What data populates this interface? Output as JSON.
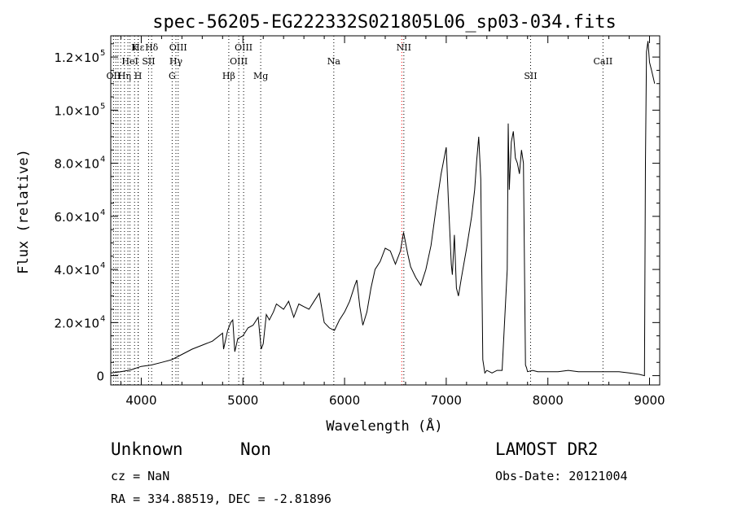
{
  "chart_data": {
    "type": "line",
    "title": "spec-56205-EG222332S021805L06_sp03-034.fits",
    "xlabel": "Wavelength (Å)",
    "ylabel": "Flux (relative)",
    "xlim": [
      3700,
      9100
    ],
    "ylim": [
      -3500,
      128000
    ],
    "x_ticks": [
      4000,
      5000,
      6000,
      7000,
      8000,
      9000
    ],
    "y_ticks": [
      {
        "value": 0,
        "mantissa": "0",
        "exponent": ""
      },
      {
        "value": 20000,
        "mantissa": "2.0×10",
        "exponent": "4"
      },
      {
        "value": 40000,
        "mantissa": "4.0×10",
        "exponent": "4"
      },
      {
        "value": 60000,
        "mantissa": "6.0×10",
        "exponent": "4"
      },
      {
        "value": 80000,
        "mantissa": "8.0×10",
        "exponent": "4"
      },
      {
        "value": 100000,
        "mantissa": "1.0×10",
        "exponent": "5"
      },
      {
        "value": 120000,
        "mantissa": "1.2×10",
        "exponent": "5"
      }
    ],
    "spectral_lines": [
      {
        "wave": 3727,
        "label": "OII",
        "row": 2,
        "color": "#000000"
      },
      {
        "wave": 3750,
        "label": "",
        "row": 0,
        "color": "#000000"
      },
      {
        "wave": 3771,
        "label": "",
        "row": 0,
        "color": "#000000"
      },
      {
        "wave": 3798,
        "label": "",
        "row": 0,
        "color": "#000000"
      },
      {
        "wave": 3835,
        "label": "Hη",
        "row": 2,
        "color": "#000000"
      },
      {
        "wave": 3869,
        "label": "",
        "row": 0,
        "color": "#000000"
      },
      {
        "wave": 3889,
        "label": "HeI",
        "row": 1,
        "color": "#000000"
      },
      {
        "wave": 3934,
        "label": "K",
        "row": 0,
        "color": "#000000"
      },
      {
        "wave": 3969,
        "label": "H",
        "row": 2,
        "color": "#000000"
      },
      {
        "wave": 3970,
        "label": "Hε",
        "row": 0,
        "color": "#000000"
      },
      {
        "wave": 4072,
        "label": "SII",
        "row": 1,
        "color": "#000000"
      },
      {
        "wave": 4102,
        "label": "Hδ",
        "row": 0,
        "color": "#000000"
      },
      {
        "wave": 4304,
        "label": "G",
        "row": 2,
        "color": "#000000"
      },
      {
        "wave": 4341,
        "label": "Hγ",
        "row": 1,
        "color": "#000000"
      },
      {
        "wave": 4363,
        "label": "OIII",
        "row": 0,
        "color": "#000000"
      },
      {
        "wave": 4861,
        "label": "Hβ",
        "row": 2,
        "color": "#000000"
      },
      {
        "wave": 4959,
        "label": "OIII",
        "row": 1,
        "color": "#000000"
      },
      {
        "wave": 5007,
        "label": "OIII",
        "row": 0,
        "color": "#000000"
      },
      {
        "wave": 5175,
        "label": "Mg",
        "row": 2,
        "color": "#000000"
      },
      {
        "wave": 5894,
        "label": "Na",
        "row": 1,
        "color": "#000000"
      },
      {
        "wave": 6563,
        "label": "",
        "row": 0,
        "color": "#ff0000"
      },
      {
        "wave": 6583,
        "label": "NII",
        "row": 0,
        "color": "#000000"
      },
      {
        "wave": 7830,
        "label": "SII",
        "row": 2,
        "color": "#000000"
      },
      {
        "wave": 8542,
        "label": "CaII",
        "row": 1,
        "color": "#000000"
      }
    ],
    "series": [
      {
        "x": [
          3700,
          3800,
          3900,
          4000,
          4100,
          4200,
          4300,
          4400,
          4500,
          4600,
          4700,
          4800,
          4810,
          4850,
          4880,
          4900,
          4920,
          4950,
          5000,
          5050,
          5100,
          5150,
          5180,
          5200,
          5230,
          5260,
          5300,
          5330,
          5400,
          5450,
          5500,
          5550,
          5600,
          5650,
          5700,
          5750,
          5800,
          5850,
          5900,
          5950,
          6000,
          6050,
          6100,
          6120,
          6150,
          6180,
          6220,
          6260,
          6300,
          6350,
          6400,
          6450,
          6500,
          6550,
          6580,
          6620,
          6650,
          6700,
          6750,
          6800,
          6850,
          6900,
          6950,
          7000,
          7020,
          7050,
          7060,
          7080,
          7100,
          7120,
          7150,
          7200,
          7250,
          7280,
          7300,
          7320,
          7340,
          7360,
          7380,
          7400,
          7450,
          7500,
          7550,
          7600,
          7610,
          7620,
          7640,
          7660,
          7680,
          7700,
          7720,
          7740,
          7760,
          7780,
          7790,
          7800,
          7850,
          7900,
          8000,
          8100,
          8200,
          8300,
          8400,
          8500,
          8600,
          8700,
          8800,
          8900,
          8950,
          8960,
          8970,
          8985,
          9000,
          9020,
          9050
        ],
        "values": [
          1000,
          1500,
          2200,
          3500,
          4000,
          5000,
          6000,
          8000,
          10000,
          11500,
          13000,
          16000,
          10000,
          17000,
          20000,
          21000,
          9000,
          14000,
          15000,
          18000,
          19000,
          22000,
          10000,
          12000,
          23000,
          21000,
          24000,
          27000,
          25000,
          28000,
          22000,
          27000,
          26000,
          25000,
          28000,
          31000,
          20000,
          18000,
          17000,
          21000,
          24000,
          28000,
          34000,
          36000,
          26000,
          19000,
          24000,
          33000,
          40000,
          43000,
          48000,
          47000,
          42000,
          47000,
          54000,
          46000,
          41000,
          37000,
          34000,
          40000,
          49000,
          63000,
          76000,
          86000,
          67000,
          42000,
          38000,
          53000,
          33000,
          30000,
          37000,
          48000,
          60000,
          70000,
          81000,
          90000,
          74000,
          6000,
          1000,
          2000,
          1000,
          2000,
          2000,
          40000,
          95000,
          70000,
          88000,
          92000,
          82000,
          80000,
          76000,
          85000,
          80000,
          4000,
          3000,
          1500,
          2000,
          1500,
          1500,
          1500,
          2000,
          1500,
          1500,
          1500,
          1500,
          1500,
          1000,
          500,
          0,
          80000,
          122000,
          126000,
          118000,
          115000,
          110000
        ]
      }
    ],
    "grid": false
  },
  "footer": {
    "class_label": "Unknown",
    "subclass_label": "Non",
    "cz": "cz = NaN",
    "coords": "RA = 334.88519, DEC =  -2.81896",
    "survey": "LAMOST DR2",
    "obs_date": "Obs-Date: 20121004"
  }
}
